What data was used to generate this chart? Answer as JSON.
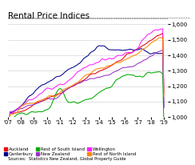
{
  "title": "Rental Price Indices",
  "source_text": "Sources:  Statistics New Zealand, Global Property Guide",
  "ylim": [
    1000,
    1640
  ],
  "yticks": [
    1000,
    1100,
    1200,
    1300,
    1400,
    1500,
    1600
  ],
  "xlim": [
    2007,
    2019.3
  ],
  "xtick_years": [
    2007,
    2008,
    2009,
    2010,
    2011,
    2012,
    2013,
    2014,
    2015,
    2016,
    2017,
    2018,
    2019
  ],
  "xlabels": [
    "'07",
    "'08",
    "'09",
    "'10",
    "'11",
    "'12",
    "'13",
    "'14",
    "'15",
    "'16",
    "'17",
    "'18",
    "'19"
  ],
  "background_color": "#ffffff",
  "grid_color": "#cccccc",
  "series": {
    "Auckland": {
      "color": "#e8000e",
      "lw": 0.75
    },
    "Canterbury": {
      "color": "#00008b",
      "lw": 0.75
    },
    "Rest of South Island": {
      "color": "#00aa00",
      "lw": 0.75
    },
    "New Zealand": {
      "color": "#9933cc",
      "lw": 0.75
    },
    "Wellington": {
      "color": "#ff22ff",
      "lw": 0.75
    },
    "Rest of North Island": {
      "color": "#ff8800",
      "lw": 0.75
    }
  },
  "legend_order": [
    "Auckland",
    "Canterbury",
    "Rest of South Island",
    "New Zealand",
    "Wellington",
    "Rest of North Island"
  ]
}
